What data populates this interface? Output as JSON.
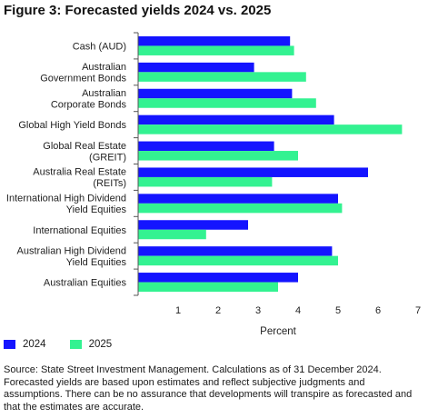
{
  "chart_data": {
    "type": "bar",
    "orientation": "horizontal",
    "title": "Figure 3: Forecasted yields 2024 vs. 2025",
    "xlabel": "Percent",
    "ylabel": "",
    "xlim": [
      0,
      7
    ],
    "xticks": [
      "1",
      "2",
      "3",
      "4",
      "5",
      "6",
      "7"
    ],
    "grid": false,
    "legend_position": "bottom-left",
    "categories": [
      [
        "Cash (AUD)"
      ],
      [
        "Australian",
        "Government Bonds"
      ],
      [
        "Australian",
        "Corporate Bonds"
      ],
      [
        "Global High Yield Bonds"
      ],
      [
        "Global Real Estate",
        "(GREIT)"
      ],
      [
        "Australia Real Estate",
        "(REITs)"
      ],
      [
        "International High Dividend",
        "Yield Equities"
      ],
      [
        "International Equities"
      ],
      [
        "Australian High Dividend",
        "Yield Equities"
      ],
      [
        "Australian Equities"
      ]
    ],
    "series": [
      {
        "name": "2024",
        "color": "#1414ff",
        "values": [
          3.8,
          2.9,
          3.85,
          4.9,
          3.4,
          5.75,
          5.0,
          2.75,
          4.85,
          4.0
        ]
      },
      {
        "name": "2025",
        "color": "#33f291",
        "values": [
          3.9,
          4.2,
          4.45,
          6.6,
          4.0,
          3.35,
          5.1,
          1.7,
          5.0,
          3.5
        ]
      }
    ]
  },
  "footnote": {
    "line1": "Source: State Street Investment Management. Calculations as of 31 December 2024.",
    "line2": "Forecasted yields are based upon estimates and reflect subjective judgments and",
    "line3": "assumptions. There can be no assurance that developments will transpire as forecasted and",
    "line4": "that the estimates are accurate."
  }
}
